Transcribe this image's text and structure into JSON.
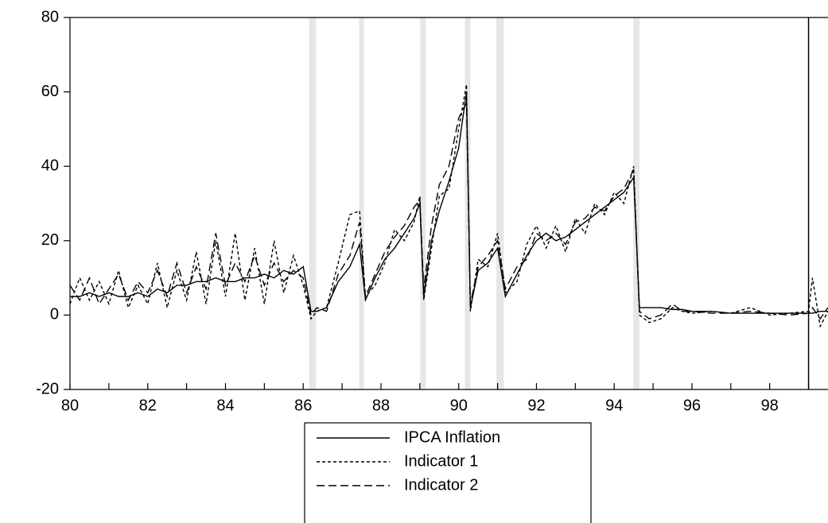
{
  "chart_data": {
    "type": "line",
    "x": [
      80,
      80.25,
      80.5,
      80.75,
      81,
      81.25,
      81.5,
      81.75,
      82,
      82.25,
      82.5,
      82.75,
      83,
      83.25,
      83.5,
      83.75,
      84,
      84.25,
      84.5,
      84.75,
      85,
      85.25,
      85.5,
      85.75,
      86,
      86.2,
      86.35,
      86.6,
      86.9,
      87.2,
      87.45,
      87.6,
      87.85,
      88.1,
      88.35,
      88.6,
      88.85,
      89.0,
      89.1,
      89.3,
      89.5,
      89.75,
      90.0,
      90.2,
      90.3,
      90.5,
      90.75,
      91.0,
      91.2,
      91.5,
      91.75,
      92.0,
      92.25,
      92.5,
      92.75,
      93.0,
      93.25,
      93.5,
      93.75,
      94.0,
      94.25,
      94.5,
      94.65,
      94.9,
      95.2,
      95.5,
      95.75,
      96.0,
      96.5,
      97.0,
      97.5,
      98.0,
      98.5,
      99.0,
      99.1,
      99.3,
      99.5
    ],
    "series": [
      {
        "name": "IPCA Inflation",
        "color": "#000000",
        "dash": "none",
        "values": [
          5,
          5,
          6,
          5,
          6,
          5,
          5,
          6,
          5,
          7,
          6,
          8,
          8,
          9,
          9,
          10,
          9,
          9,
          10,
          10,
          11,
          10,
          12,
          11,
          13,
          1,
          1,
          2,
          9,
          13,
          19,
          4,
          10,
          15,
          18,
          22,
          26,
          30,
          5,
          20,
          28,
          36,
          45,
          60,
          2,
          12,
          14,
          18,
          5,
          11,
          16,
          20,
          22,
          20,
          21,
          23,
          25,
          27,
          29,
          31,
          33,
          37,
          2,
          2,
          2,
          1.5,
          1.5,
          1,
          1,
          0.5,
          0.5,
          0.5,
          0.5,
          0.5,
          0.5,
          1,
          1
        ]
      },
      {
        "name": "Indicator 1",
        "color": "#000000",
        "dash": "4,3",
        "values": [
          3,
          10,
          4,
          9,
          3,
          12,
          2,
          8,
          3,
          14,
          2,
          12,
          4,
          17,
          3,
          20,
          5,
          22,
          4,
          18,
          3,
          20,
          6,
          16,
          8,
          -1,
          1,
          2,
          14,
          27,
          28,
          5,
          8,
          14,
          23,
          20,
          25,
          32,
          4,
          18,
          32,
          34,
          50,
          62,
          1,
          15,
          13,
          22,
          6,
          9,
          19,
          24,
          18,
          24,
          17,
          26,
          22,
          30,
          27,
          33,
          30,
          40,
          0,
          -2,
          -1,
          2,
          1,
          0.5,
          1,
          0.5,
          2,
          0,
          0.5,
          1,
          10,
          -3,
          1
        ]
      },
      {
        "name": "Indicator 2",
        "color": "#000000",
        "dash": "10,5",
        "values": [
          8,
          4,
          10,
          3,
          7,
          11,
          4,
          9,
          6,
          12,
          5,
          14,
          6,
          13,
          7,
          22,
          8,
          14,
          9,
          16,
          8,
          14,
          9,
          12,
          10,
          0,
          2,
          1,
          11,
          16,
          25,
          5,
          11,
          17,
          21,
          24,
          29,
          31,
          7,
          24,
          35,
          40,
          53,
          57,
          3,
          13,
          16,
          20,
          7,
          13,
          15,
          22,
          20,
          22,
          19,
          25,
          26,
          29,
          28,
          32,
          34,
          39,
          1,
          -1,
          0,
          3,
          1,
          1,
          0.5,
          0.5,
          1,
          0.5,
          0,
          0.5,
          2,
          -1,
          2
        ]
      }
    ],
    "xlim": [
      80,
      99.5
    ],
    "xticks": [
      80,
      82,
      84,
      86,
      88,
      90,
      92,
      94,
      96,
      98
    ],
    "xminorticks": [
      81,
      83,
      85,
      87,
      89,
      91,
      93,
      95,
      97,
      99
    ],
    "ylim": [
      -20,
      80
    ],
    "yticks": [
      -20,
      0,
      20,
      40,
      60,
      80
    ],
    "shaded_periods": [
      [
        86.15,
        86.33
      ],
      [
        87.44,
        87.56
      ],
      [
        89.01,
        89.15
      ],
      [
        90.16,
        90.3
      ],
      [
        90.97,
        91.16
      ],
      [
        94.49,
        94.65
      ]
    ],
    "shade_color": "#e6e6e6",
    "vlines": [
      99.0
    ]
  }
}
